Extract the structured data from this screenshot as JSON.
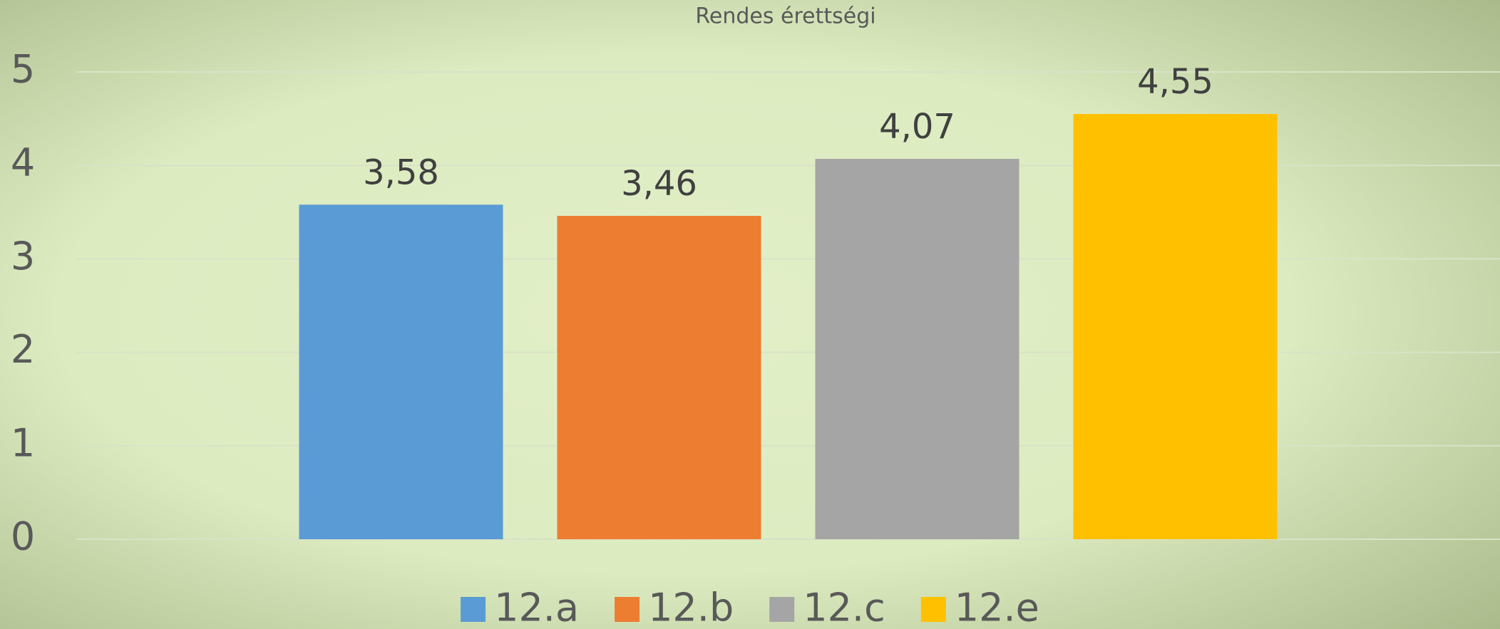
{
  "chart_data": {
    "type": "bar",
    "title": "Rendes érettségi",
    "categories": [
      null
    ],
    "series": [
      {
        "name": "12.a",
        "color": "#5b9bd5",
        "values": [
          3.58
        ],
        "value_labels": [
          "3,58"
        ]
      },
      {
        "name": "12.b",
        "color": "#ed7d31",
        "values": [
          3.46
        ],
        "value_labels": [
          "3,46"
        ]
      },
      {
        "name": "12.c",
        "color": "#a5a5a5",
        "values": [
          4.07
        ],
        "value_labels": [
          "4,07"
        ]
      },
      {
        "name": "12.e",
        "color": "#ffc000",
        "values": [
          4.55
        ],
        "value_labels": [
          "4,55"
        ]
      }
    ],
    "ylim": [
      0,
      5
    ],
    "yticks": [
      0,
      1,
      2,
      3,
      4,
      5
    ],
    "grid": true,
    "legend": "bottom"
  }
}
